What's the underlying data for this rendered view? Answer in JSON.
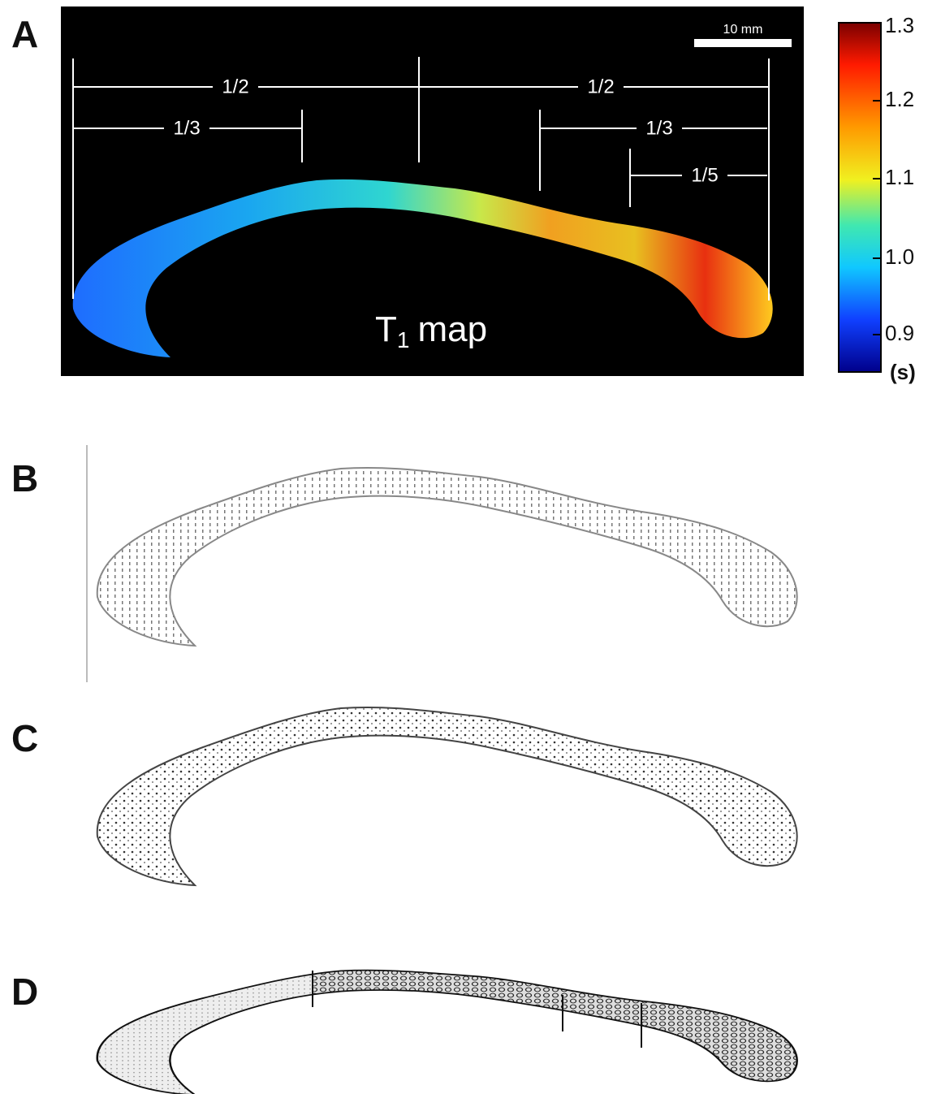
{
  "panels": [
    {
      "label": "A",
      "annotations": {
        "scale_bar": "10 mm",
        "segments": [
          "1/2",
          "1/2",
          "1/3",
          "1/3",
          "1/5"
        ],
        "map_title": {
          "symbol": "T",
          "subscript": "1",
          "rest": "map"
        }
      },
      "colorbar": {
        "ticks": [
          "1.3",
          "1.2",
          "1.1",
          "1.0",
          "0.9"
        ],
        "unit": "(s)"
      }
    },
    {
      "label": "B"
    },
    {
      "label": "C"
    },
    {
      "label": "D"
    }
  ]
}
